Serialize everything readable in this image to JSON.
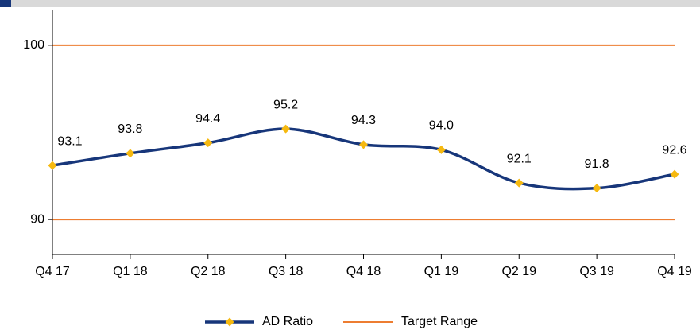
{
  "chart_data": {
    "type": "line",
    "categories": [
      "Q4 17",
      "Q1 18",
      "Q2 18",
      "Q3 18",
      "Q4 18",
      "Q1 19",
      "Q2 19",
      "Q3 19",
      "Q4 19"
    ],
    "series": [
      {
        "name": "AD Ratio",
        "color": "#17367a",
        "marker_color": "#f6b910",
        "values": [
          93.1,
          93.8,
          94.4,
          95.2,
          94.3,
          94.0,
          92.1,
          91.8,
          92.6
        ],
        "value_labels": [
          "93.1",
          "93.8",
          "94.4",
          "95.2",
          "94.3",
          "94.0",
          "92.1",
          "91.8",
          "92.6"
        ]
      }
    ],
    "target_range": {
      "name": "Target Range",
      "color": "#ed7d31",
      "values": [
        90,
        100
      ]
    },
    "ylim": [
      88,
      102
    ],
    "yticks": [
      90,
      100
    ],
    "smooth": true,
    "legend": "bottom"
  }
}
